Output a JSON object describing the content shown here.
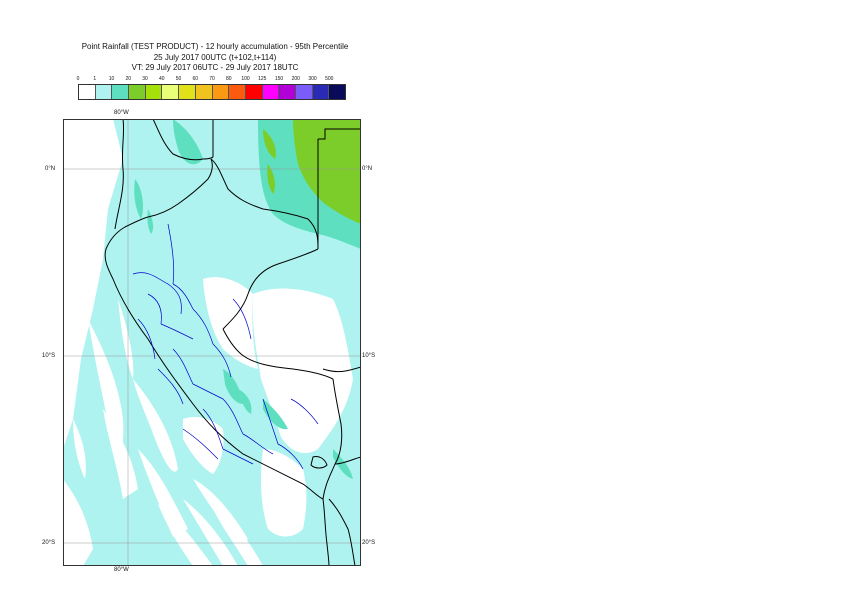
{
  "title": {
    "line1": "Point Rainfall (TEST PRODUCT) - 12 hourly accumulation - 95th Percentile",
    "line2": "25 July 2017 00UTC (t+102,t+114)",
    "line3": "VT: 29 July 2017 06UTC - 29 July 2017 18UTC"
  },
  "legend": {
    "thresholds": [
      "0",
      "1",
      "10",
      "20",
      "30",
      "40",
      "50",
      "60",
      "70",
      "80",
      "100",
      "125",
      "150",
      "200",
      "300",
      "500"
    ],
    "colors": [
      "#ffffff",
      "#aef3ef",
      "#5ee0c0",
      "#7ccd2a",
      "#a6e00a",
      "#eaff78",
      "#e2e21a",
      "#f0c31e",
      "#fb9a12",
      "#fc5a0e",
      "#ff0000",
      "#ff00ff",
      "#b200d8",
      "#7a5df8",
      "#2a2ab4",
      "#0a0a5a"
    ]
  },
  "map": {
    "lon_label_top": "80°W",
    "lon_label_bottom": "80°W",
    "lat_labels": {
      "north": "0°N",
      "mid": "10°S",
      "south": "20°S"
    },
    "colors": {
      "ocean_fill": "#aef3ef",
      "land_fill": "#aef3ef",
      "dry_fill": "#ffffff",
      "mid_fill": "#5ee0c0",
      "wet_fill": "#7ccd2a",
      "country_border": "#000000",
      "admin_border": "#0000cc",
      "grid": "#999999"
    }
  }
}
